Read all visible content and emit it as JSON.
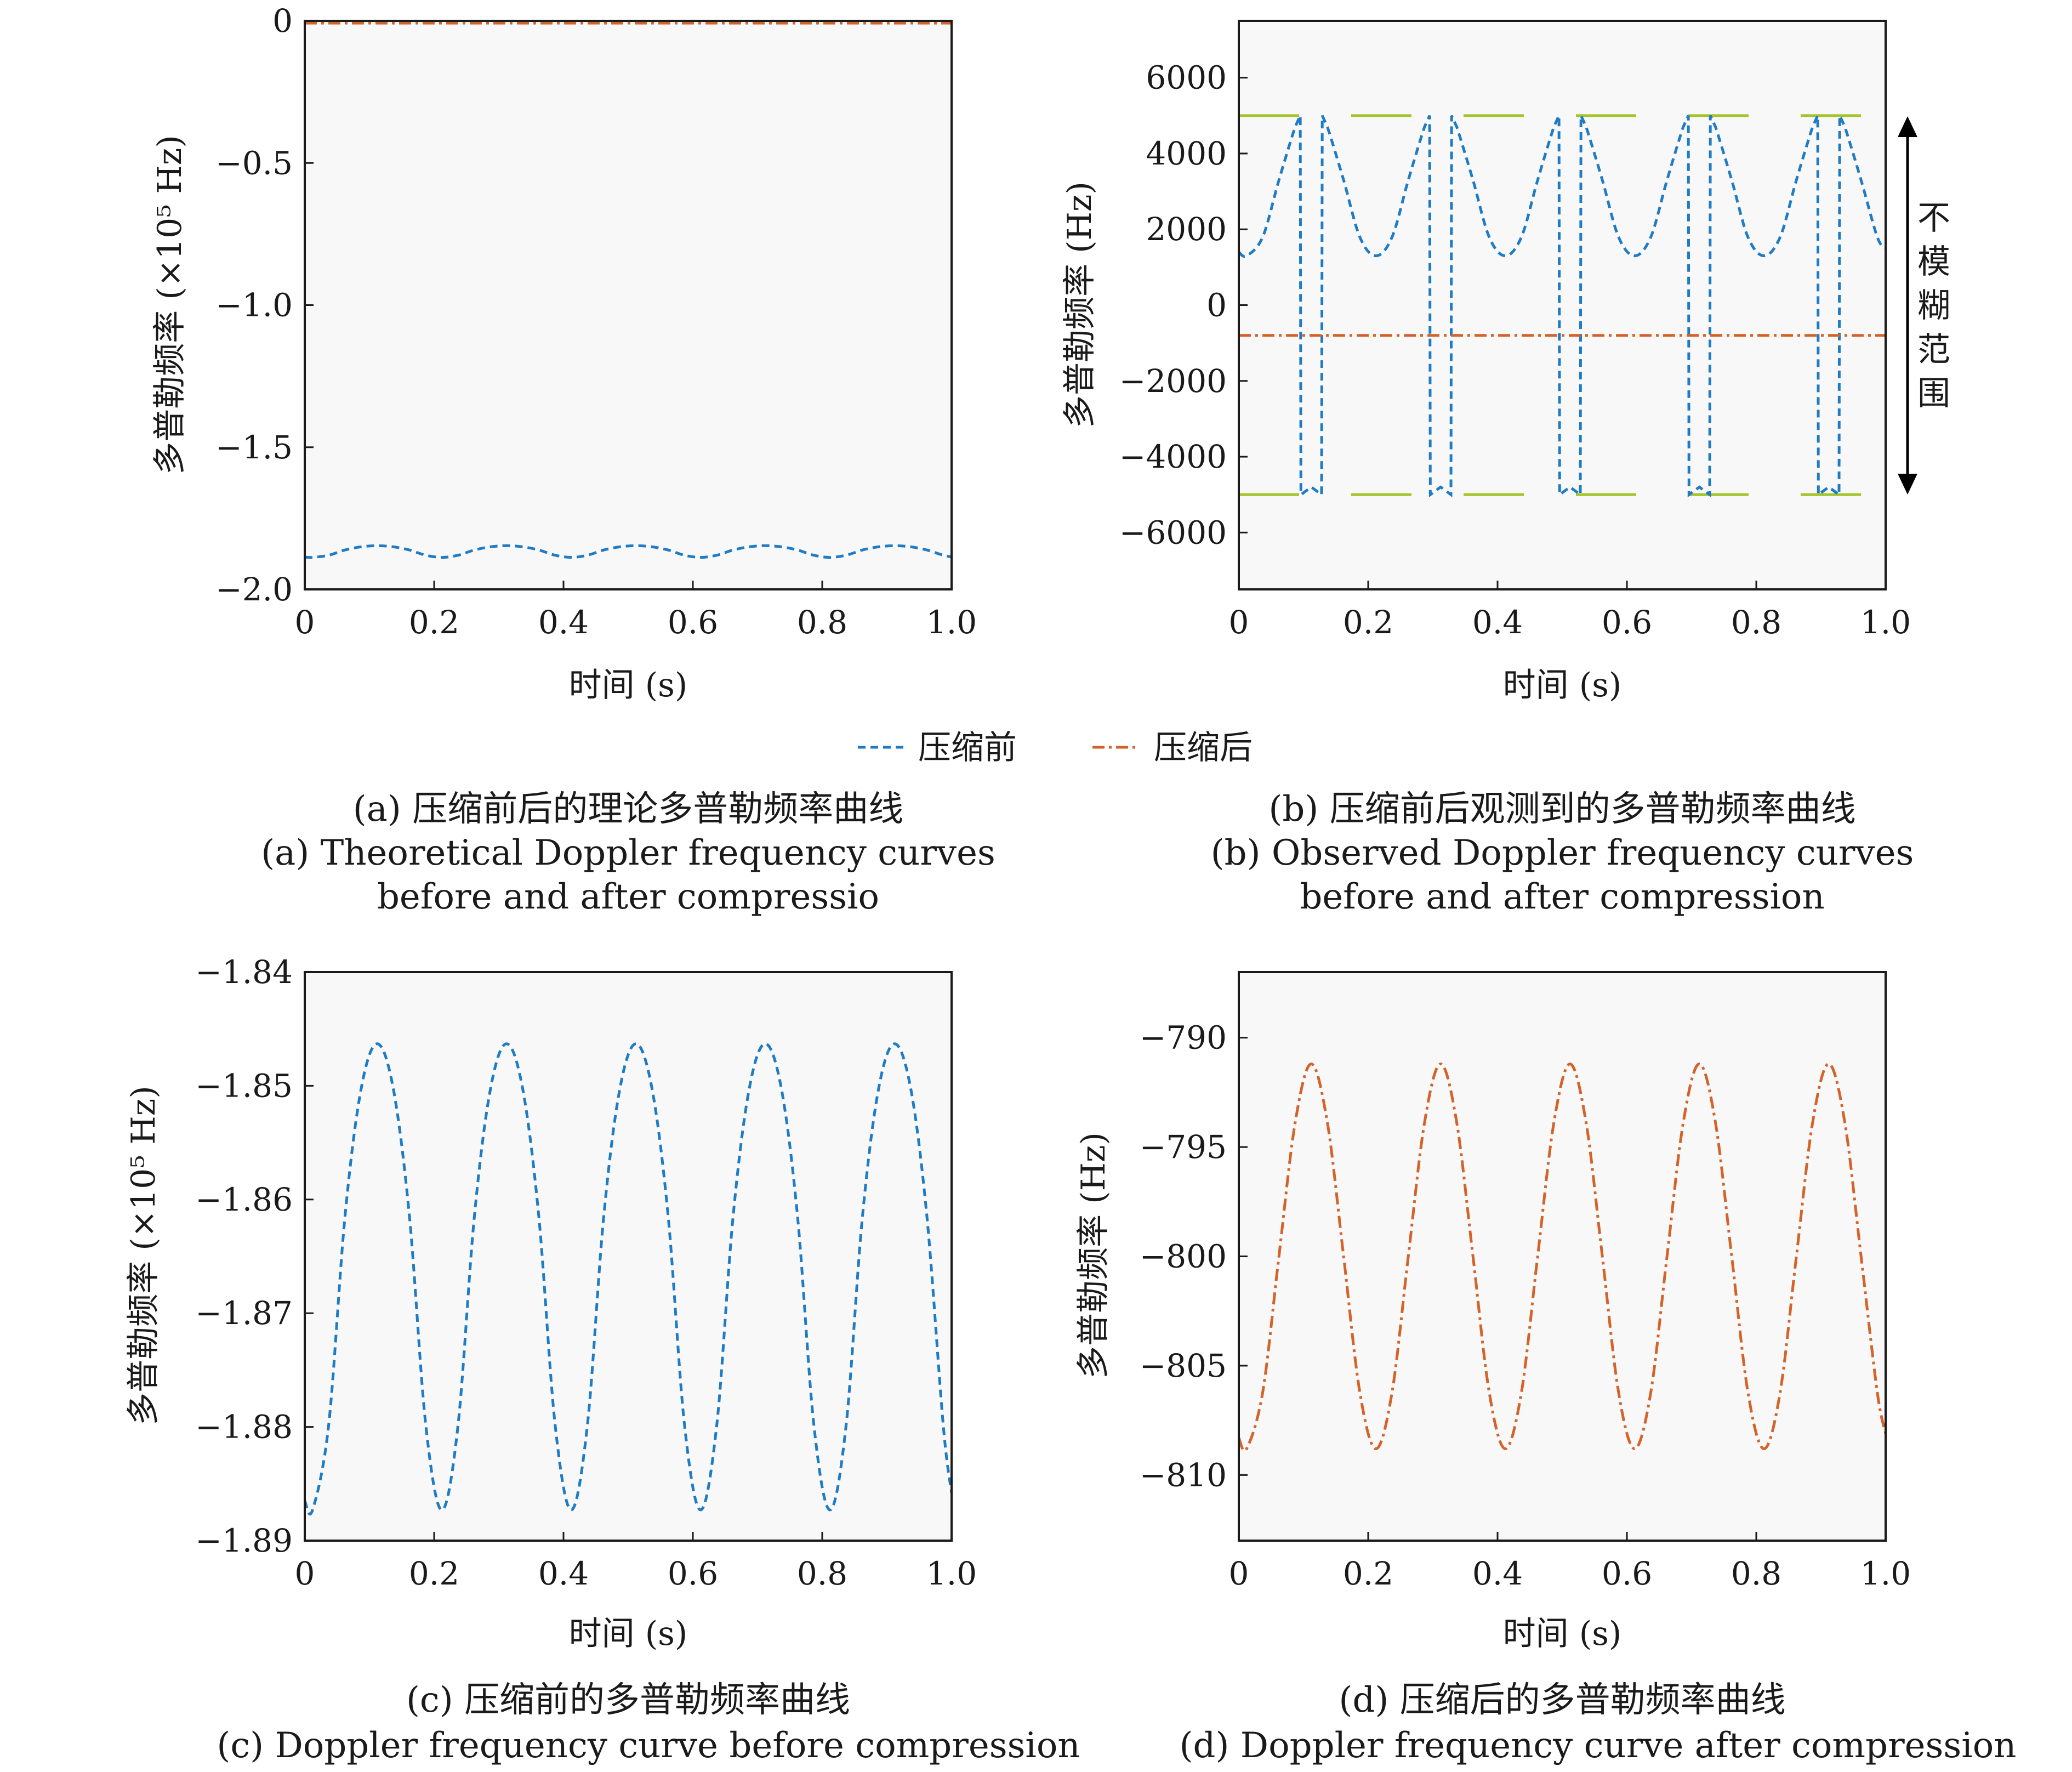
{
  "legend": {
    "before_label": "压缩前",
    "after_label": "压缩后"
  },
  "colors": {
    "before": "#1f7bc4",
    "before_alt": "#555555",
    "after": "#d3632a",
    "ambiguity": "#a3c42b",
    "plot_bg": "#f8f8f8",
    "axis": "#1a1a1a"
  },
  "panels": [
    {
      "caption_cn": "(a) 压缩前后的理论多普勒频率曲线",
      "caption_en_1": "(a) Theoretical Doppler frequency curves",
      "caption_en_2": "before and after compressio",
      "xlabel": "时间 (s)",
      "ylabel": "多普勒频率 (×10⁵ Hz)"
    },
    {
      "caption_cn": "(b) 压缩前后观测到的多普勒频率曲线",
      "caption_en_1": "(b) Observed Doppler frequency curves",
      "caption_en_2": "before and after compression",
      "xlabel": "时间 (s)",
      "ylabel": "多普勒频率 (Hz)",
      "annotation": [
        "不",
        "模",
        "糊",
        "范",
        "围"
      ]
    },
    {
      "caption_cn": "(c) 压缩前的多普勒频率曲线",
      "caption_en_1": "(c) Doppler frequency curve before compression",
      "caption_en_2": "",
      "xlabel": "时间 (s)",
      "ylabel": "多普勒频率 (×10⁵ Hz)"
    },
    {
      "caption_cn": "(d) 压缩后的多普勒频率曲线",
      "caption_en_1": "(d) Doppler frequency curve after compression",
      "caption_en_2": "",
      "xlabel": "时间 (s)",
      "ylabel": "多普勒频率 (Hz)"
    }
  ],
  "chart_data": [
    {
      "type": "line",
      "xlim": [
        0,
        1.0
      ],
      "ylim": [
        -2.0,
        0
      ],
      "x_ticks": [
        0,
        0.2,
        0.4,
        0.6,
        0.8,
        1.0
      ],
      "x_tick_labels": [
        "0",
        "0.2",
        "0.4",
        "0.6",
        "0.8",
        "1.0"
      ],
      "y_ticks": [
        0,
        -0.5,
        -1.0,
        -1.5,
        -2.0
      ],
      "y_tick_labels": [
        "0",
        "−0.5",
        "−1.0",
        "−1.5",
        "−2.0"
      ],
      "grid": false,
      "series": [
        {
          "name": "压缩前",
          "x": [
            0,
            0.012,
            0.037,
            0.062,
            0.087,
            0.112,
            0.137,
            0.162,
            0.187,
            0.212,
            0.237,
            0.262,
            0.287,
            0.312,
            0.337,
            0.362,
            0.387,
            0.412,
            0.437,
            0.462,
            0.487,
            0.512,
            0.537,
            0.562,
            0.587,
            0.612,
            0.637,
            0.662,
            0.687,
            0.712,
            0.737,
            0.762,
            0.787,
            0.812,
            0.837,
            0.862,
            0.887,
            0.912,
            0.937,
            0.962,
            0.987,
            1.0
          ],
          "y": [
            -1.8865,
            -1.8873,
            -1.8798,
            -1.8616,
            -1.8503,
            -1.8463,
            -1.8503,
            -1.8616,
            -1.8798,
            -1.8873,
            -1.8798,
            -1.8616,
            -1.8503,
            -1.8463,
            -1.8503,
            -1.8616,
            -1.8798,
            -1.8873,
            -1.8798,
            -1.8616,
            -1.8503,
            -1.8463,
            -1.8503,
            -1.8616,
            -1.8798,
            -1.8873,
            -1.8798,
            -1.8616,
            -1.8503,
            -1.8463,
            -1.8503,
            -1.8616,
            -1.8798,
            -1.8873,
            -1.8798,
            -1.8616,
            -1.8503,
            -1.8463,
            -1.8503,
            -1.8616,
            -1.8798,
            -1.8858
          ]
        },
        {
          "name": "压缩后",
          "x": [
            0,
            0.25,
            0.5,
            0.75,
            1.0
          ],
          "y": [
            -0.008,
            -0.008,
            -0.008,
            -0.008,
            -0.008
          ]
        }
      ]
    },
    {
      "type": "line",
      "xlim": [
        0,
        1.0
      ],
      "ylim": [
        -7500,
        7500
      ],
      "x_ticks": [
        0,
        0.2,
        0.4,
        0.6,
        0.8,
        1.0
      ],
      "x_tick_labels": [
        "0",
        "0.2",
        "0.4",
        "0.6",
        "0.8",
        "1.0"
      ],
      "y_ticks": [
        6000,
        4000,
        2000,
        0,
        -2000,
        -4000,
        -6000
      ],
      "y_tick_labels": [
        "6000",
        "4000",
        "2000",
        "0",
        "−2000",
        "−4000",
        "−6000"
      ],
      "grid": false,
      "unambiguous_range": [
        -5000,
        5000
      ],
      "series": [
        {
          "name": "压缩前",
          "x": [
            0,
            0.012,
            0.037,
            0.062,
            0.087,
            0.095,
            0.096,
            0.112,
            0.128,
            0.129,
            0.137,
            0.162,
            0.187,
            0.212,
            0.237,
            0.262,
            0.287,
            0.295,
            0.296,
            0.312,
            0.328,
            0.329,
            0.337,
            0.362,
            0.387,
            0.412,
            0.437,
            0.462,
            0.487,
            0.495,
            0.496,
            0.512,
            0.528,
            0.529,
            0.537,
            0.562,
            0.587,
            0.612,
            0.637,
            0.662,
            0.687,
            0.695,
            0.696,
            0.712,
            0.728,
            0.729,
            0.737,
            0.762,
            0.787,
            0.812,
            0.837,
            0.862,
            0.887,
            0.895,
            0.896,
            0.912,
            0.928,
            0.929,
            0.937,
            0.962,
            0.987,
            1.0
          ],
          "y": [
            1400,
            1300,
            1800,
            3300,
            4700,
            5000,
            -5000,
            -4800,
            -5000,
            5000,
            4700,
            3300,
            1800,
            1300,
            1800,
            3300,
            4700,
            5000,
            -5000,
            -4800,
            -5000,
            5000,
            4700,
            3300,
            1800,
            1300,
            1800,
            3300,
            4700,
            5000,
            -5000,
            -4800,
            -5000,
            5000,
            4700,
            3300,
            1800,
            1300,
            1800,
            3300,
            4700,
            5000,
            -5000,
            -4800,
            -5000,
            5000,
            4700,
            3300,
            1800,
            1300,
            1800,
            3300,
            4700,
            5000,
            -5000,
            -4800,
            -5000,
            5000,
            4700,
            3300,
            1800,
            1500
          ]
        },
        {
          "name": "压缩后",
          "x": [
            0,
            0.25,
            0.5,
            0.75,
            1.0
          ],
          "y": [
            -800,
            -800,
            -800,
            -800,
            -800
          ]
        }
      ]
    },
    {
      "type": "line",
      "xlim": [
        0,
        1.0
      ],
      "ylim": [
        -1.89,
        -1.84
      ],
      "x_ticks": [
        0,
        0.2,
        0.4,
        0.6,
        0.8,
        1.0
      ],
      "x_tick_labels": [
        "0",
        "0.2",
        "0.4",
        "0.6",
        "0.8",
        "1.0"
      ],
      "y_ticks": [
        -1.84,
        -1.85,
        -1.86,
        -1.87,
        -1.88,
        -1.89
      ],
      "y_tick_labels": [
        "−1.84",
        "−1.85",
        "−1.86",
        "−1.87",
        "−1.88",
        "−1.89"
      ],
      "grid": false,
      "series": [
        {
          "name": "压缩前",
          "x": [
            0,
            0.012,
            0.037,
            0.062,
            0.087,
            0.112,
            0.137,
            0.162,
            0.187,
            0.212,
            0.237,
            0.262,
            0.287,
            0.312,
            0.337,
            0.362,
            0.387,
            0.412,
            0.437,
            0.462,
            0.487,
            0.512,
            0.537,
            0.562,
            0.587,
            0.612,
            0.637,
            0.662,
            0.687,
            0.712,
            0.737,
            0.762,
            0.787,
            0.812,
            0.837,
            0.862,
            0.887,
            0.912,
            0.937,
            0.962,
            0.987,
            1.0
          ],
          "y": [
            -1.8865,
            -1.8873,
            -1.8798,
            -1.8616,
            -1.8503,
            -1.8463,
            -1.8503,
            -1.8616,
            -1.8798,
            -1.8873,
            -1.8798,
            -1.8616,
            -1.8503,
            -1.8463,
            -1.8503,
            -1.8616,
            -1.8798,
            -1.8873,
            -1.8798,
            -1.8616,
            -1.8503,
            -1.8463,
            -1.8503,
            -1.8616,
            -1.8798,
            -1.8873,
            -1.8798,
            -1.8616,
            -1.8503,
            -1.8463,
            -1.8503,
            -1.8616,
            -1.8798,
            -1.8873,
            -1.8798,
            -1.8616,
            -1.8503,
            -1.8463,
            -1.8503,
            -1.8616,
            -1.8798,
            -1.8858
          ]
        }
      ]
    },
    {
      "type": "line",
      "xlim": [
        0,
        1.0
      ],
      "ylim": [
        -813,
        -787
      ],
      "x_ticks": [
        0,
        0.2,
        0.4,
        0.6,
        0.8,
        1.0
      ],
      "x_tick_labels": [
        "0",
        "0.2",
        "0.4",
        "0.6",
        "0.8",
        "1.0"
      ],
      "y_ticks": [
        -790,
        -795,
        -800,
        -805,
        -810
      ],
      "y_tick_labels": [
        "−790",
        "−795",
        "−800",
        "−805",
        "−810"
      ],
      "grid": false,
      "series": [
        {
          "name": "压缩后",
          "x": [
            0,
            0.012,
            0.037,
            0.062,
            0.087,
            0.112,
            0.137,
            0.162,
            0.187,
            0.212,
            0.237,
            0.262,
            0.287,
            0.312,
            0.337,
            0.362,
            0.387,
            0.412,
            0.437,
            0.462,
            0.487,
            0.512,
            0.537,
            0.562,
            0.587,
            0.612,
            0.637,
            0.662,
            0.687,
            0.712,
            0.737,
            0.762,
            0.787,
            0.812,
            0.837,
            0.862,
            0.887,
            0.912,
            0.937,
            0.962,
            0.987,
            1.0
          ],
          "y": [
            -808.3,
            -808.8,
            -806.2,
            -800.0,
            -793.9,
            -791.2,
            -793.9,
            -800.0,
            -806.2,
            -808.8,
            -806.2,
            -800.0,
            -793.9,
            -791.2,
            -793.9,
            -800.0,
            -806.2,
            -808.8,
            -806.2,
            -800.0,
            -793.9,
            -791.2,
            -793.9,
            -800.0,
            -806.2,
            -808.8,
            -806.2,
            -800.0,
            -793.9,
            -791.2,
            -793.9,
            -800.0,
            -806.2,
            -808.8,
            -806.2,
            -800.0,
            -793.9,
            -791.2,
            -793.9,
            -800.0,
            -806.2,
            -808.1
          ]
        }
      ]
    }
  ]
}
